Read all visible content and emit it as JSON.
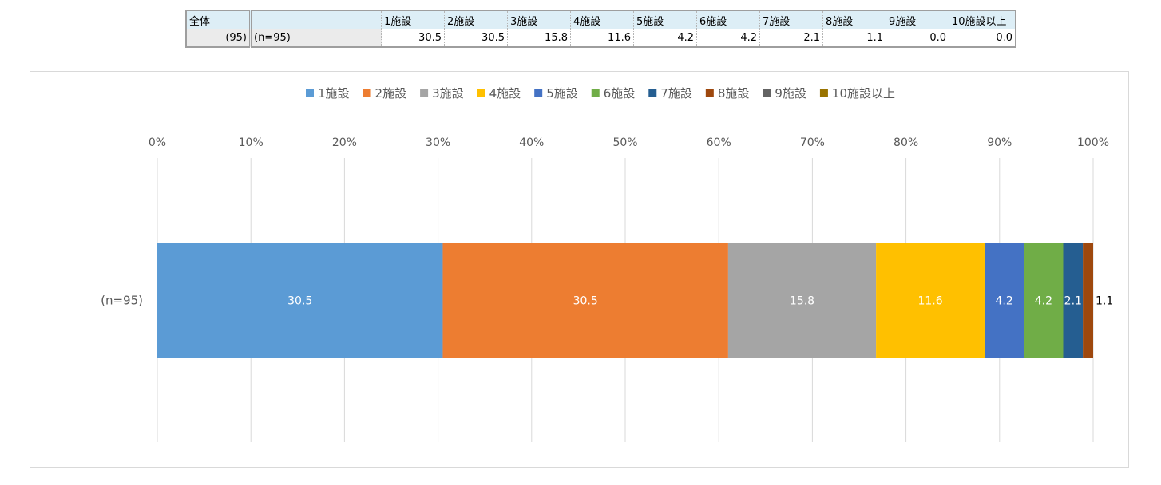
{
  "table": {
    "corner_label": "全体",
    "count_label": "(95)",
    "n_label": "(n=95)",
    "headers": [
      "1施設",
      "2施設",
      "3施設",
      "4施設",
      "5施設",
      "6施設",
      "7施設",
      "8施設",
      "9施設",
      "10施設以上"
    ],
    "values": [
      "30.5",
      "30.5",
      "15.8",
      "11.6",
      "4.2",
      "4.2",
      "2.1",
      "1.1",
      "0.0",
      "0.0"
    ]
  },
  "chart_data": {
    "type": "bar",
    "orientation": "horizontal",
    "stacked": "100%",
    "categories": [
      "(n=95)"
    ],
    "series": [
      {
        "name": "1施設",
        "values": [
          30.5
        ],
        "color": "#5b9bd5"
      },
      {
        "name": "2施設",
        "values": [
          30.5
        ],
        "color": "#ed7d31"
      },
      {
        "name": "3施設",
        "values": [
          15.8
        ],
        "color": "#a5a5a5"
      },
      {
        "name": "4施設",
        "values": [
          11.6
        ],
        "color": "#ffc000"
      },
      {
        "name": "5施設",
        "values": [
          4.2
        ],
        "color": "#4472c4"
      },
      {
        "name": "6施設",
        "values": [
          4.2
        ],
        "color": "#70ad47"
      },
      {
        "name": "7施設",
        "values": [
          2.1
        ],
        "color": "#255e91"
      },
      {
        "name": "8施設",
        "values": [
          1.1
        ],
        "color": "#9e480e"
      },
      {
        "name": "9施設",
        "values": [
          0.0
        ],
        "color": "#636363"
      },
      {
        "name": "10施設以上",
        "values": [
          0.0
        ],
        "color": "#997300"
      }
    ],
    "data_labels": [
      "30.5",
      "30.5",
      "15.8",
      "11.6",
      "4.2",
      "4.2",
      "2.1",
      "1.1",
      "",
      ""
    ],
    "x_ticks": [
      "0%",
      "10%",
      "20%",
      "30%",
      "40%",
      "50%",
      "60%",
      "70%",
      "80%",
      "90%",
      "100%"
    ],
    "xlim": [
      0,
      100
    ],
    "grid": true,
    "legend_position": "top"
  }
}
